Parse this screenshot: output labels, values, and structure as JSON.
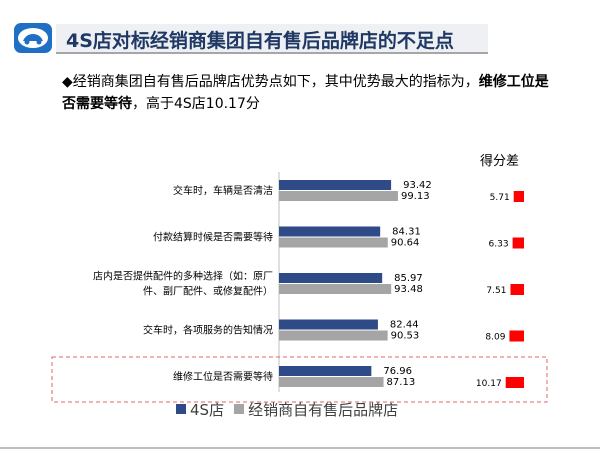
{
  "header": {
    "title": "4S店对标经销商集团自有售后品牌店的不足点"
  },
  "bullet": {
    "marker": "◆",
    "text_before": "经销商集团自有售后品牌店优势点如下，其中优势最大的指标为，",
    "text_bold": "维修工位是否需要等待",
    "text_after": "，高于4S店10.17分"
  },
  "diff_header": "得分差",
  "colors": {
    "series_4s": "#2e4a87",
    "series_dealer": "#a5a5a5",
    "diff_bar": "#ff0000",
    "highlight_border": "#e06666",
    "title_text": "#1f3864"
  },
  "chart_data": {
    "type": "bar",
    "orientation": "horizontal",
    "categories": [
      [
        "交车时，车辆是否清洁"
      ],
      [
        "付款结算时候是否需要等待"
      ],
      [
        "店内是否提供配件的多种选择（如：原厂",
        "件、副厂配件、或修复配件）"
      ],
      [
        "交车时，各项服务的告知情况"
      ],
      [
        "维修工位是否需要等待"
      ]
    ],
    "series": [
      {
        "name": "4S店",
        "values": [
          93.42,
          84.31,
          85.97,
          82.44,
          76.96
        ]
      },
      {
        "name": "经销商自有售后品牌店",
        "values": [
          99.13,
          90.64,
          93.48,
          90.53,
          87.13
        ]
      }
    ],
    "diff": {
      "title": "得分差",
      "values": [
        5.71,
        6.33,
        7.51,
        8.09,
        10.17
      ]
    },
    "highlighted_category": "维修工位是否需要等待",
    "legend_position": "bottom",
    "grid": false
  }
}
